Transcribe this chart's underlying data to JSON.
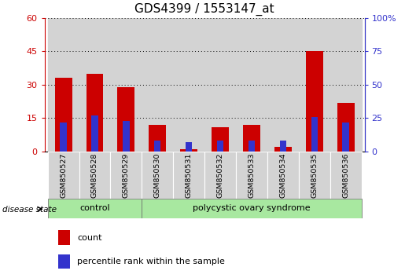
{
  "title": "GDS4399 / 1553147_at",
  "samples": [
    "GSM850527",
    "GSM850528",
    "GSM850529",
    "GSM850530",
    "GSM850531",
    "GSM850532",
    "GSM850533",
    "GSM850534",
    "GSM850535",
    "GSM850536"
  ],
  "count_values": [
    33,
    35,
    29,
    12,
    1,
    11,
    12,
    2,
    45,
    22
  ],
  "percentile_values": [
    22,
    27,
    23,
    8,
    7,
    8,
    8,
    8,
    26,
    22
  ],
  "control_count": 3,
  "pcos_count": 7,
  "left_ylim": [
    0,
    60
  ],
  "left_yticks": [
    0,
    15,
    30,
    45,
    60
  ],
  "right_ylim": [
    0,
    100
  ],
  "right_yticks": [
    0,
    25,
    50,
    75,
    100
  ],
  "bar_color_count": "#cc0000",
  "bar_color_percentile": "#3333cc",
  "bar_width": 0.55,
  "bg_color_samples": "#d3d3d3",
  "bg_color_control": "#a8e8a0",
  "bg_color_pcos": "#a8e8a0",
  "title_fontsize": 11,
  "tick_fontsize": 8,
  "legend_count_label": "count",
  "legend_pct_label": "percentile rank within the sample",
  "disease_state_label": "disease state",
  "control_label": "control",
  "pcos_label": "polycystic ovary syndrome"
}
